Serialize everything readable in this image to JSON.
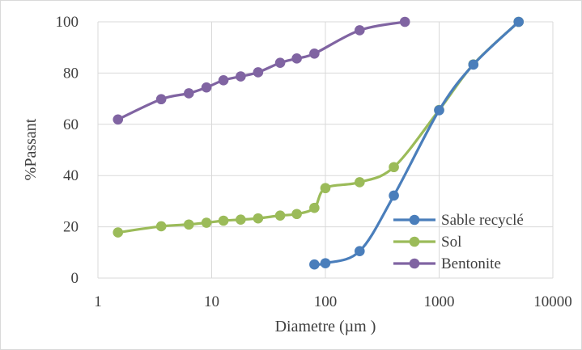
{
  "chart_data": {
    "type": "scatter",
    "title": "",
    "xlabel": "Diametre (µm )",
    "ylabel": "%Passant",
    "x_scale": "log",
    "xlim": [
      1,
      10000
    ],
    "ylim": [
      0,
      100
    ],
    "x_ticks": [
      1,
      10,
      100,
      1000,
      10000
    ],
    "x_tick_labels": [
      "1",
      "10",
      "100",
      "1000",
      "10000"
    ],
    "y_ticks": [
      0,
      20,
      40,
      60,
      80,
      100
    ],
    "y_tick_labels": [
      "0",
      "20",
      "40",
      "60",
      "80",
      "100"
    ],
    "grid": true,
    "legend_position": "bottom-right inside",
    "style": "smooth lines with markers",
    "series": [
      {
        "name": "Sable recyclé",
        "color": "#4a7ebb",
        "x": [
          80,
          100,
          200,
          400,
          1000,
          2000,
          5000
        ],
        "y": [
          5.3,
          5.8,
          10.5,
          32.2,
          65.5,
          83.3,
          100
        ]
      },
      {
        "name": "Sol",
        "color": "#9bbb59",
        "x": [
          1.5,
          3.6,
          6.3,
          9,
          12.7,
          18,
          25.6,
          40,
          56,
          80,
          100,
          200,
          400,
          1000,
          2000,
          5000
        ],
        "y": [
          17.8,
          20.2,
          20.9,
          21.6,
          22.4,
          22.8,
          23.3,
          24.4,
          25,
          27.4,
          35.1,
          37.4,
          43.3,
          65.6,
          83.4,
          100
        ]
      },
      {
        "name": "Bentonite",
        "color": "#8064a2",
        "x": [
          1.5,
          3.6,
          6.3,
          9,
          12.7,
          18,
          25.6,
          40,
          56,
          80,
          200,
          500
        ],
        "y": [
          61.9,
          69.8,
          72.1,
          74.4,
          77.2,
          78.7,
          80.3,
          84,
          85.7,
          87.6,
          96.7,
          100
        ]
      }
    ]
  }
}
